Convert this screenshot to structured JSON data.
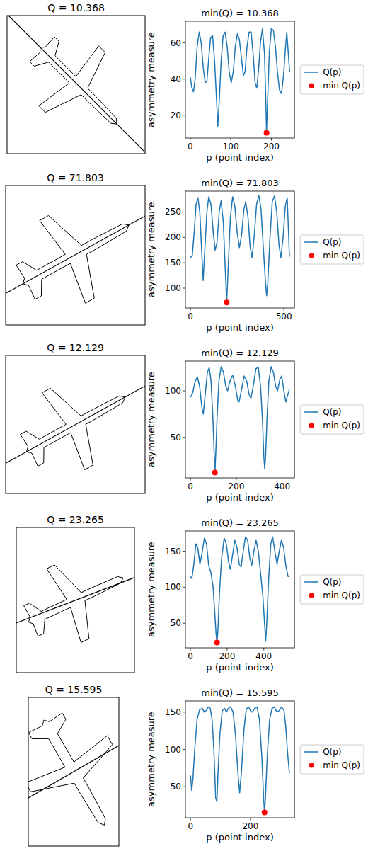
{
  "images": [
    {
      "title": "Q = 10.368"
    },
    {
      "title": "Q = 71.803"
    },
    {
      "title": "Q = 12.129"
    },
    {
      "title": "Q = 23.265"
    },
    {
      "title": "Q = 15.595"
    }
  ],
  "chart_data": [
    {
      "type": "line",
      "title": "min(Q) = 10.368",
      "x_label": "p (point index)",
      "y_label": "asymmetry measure",
      "xlim": [
        -12,
        257
      ],
      "ylim": [
        7.4,
        72
      ],
      "xticks": [
        0,
        100,
        200
      ],
      "yticks": [
        20,
        40,
        60
      ],
      "grid": false,
      "legend": "right",
      "series": [
        {
          "name": "Q(p)",
          "color": "#1f77b4",
          "line_style": "solid",
          "x": [
            0,
            4,
            8,
            12,
            17,
            22,
            27,
            32,
            37,
            41,
            45,
            50,
            55,
            60,
            64,
            68,
            72,
            76,
            81,
            86,
            91,
            96,
            101,
            106,
            111,
            116,
            121,
            126,
            131,
            135,
            140,
            145,
            150,
            155,
            160,
            164,
            168,
            173,
            178,
            183,
            186,
            188,
            191,
            195,
            200,
            205,
            210,
            215,
            220,
            225,
            230,
            235,
            238,
            245
          ],
          "values": [
            41,
            35,
            33,
            40,
            58,
            66,
            60,
            46,
            38,
            39,
            50,
            63,
            64,
            50,
            32,
            14,
            30,
            50,
            64,
            66,
            58,
            44,
            38,
            44,
            58,
            65,
            62,
            52,
            42,
            44,
            58,
            66,
            66,
            54,
            38,
            35,
            44,
            60,
            68,
            54,
            30,
            10.368,
            30,
            55,
            68,
            67,
            58,
            44,
            34,
            32,
            42,
            58,
            66,
            44
          ]
        },
        {
          "name": "min Q(p)",
          "type": "scatter",
          "color": "red",
          "marker": "circle",
          "x": [
            188
          ],
          "values": [
            10.368
          ]
        }
      ]
    },
    {
      "type": "line",
      "title": "min(Q) = 71.803",
      "x_label": "p (point index)",
      "y_label": "asymmetry measure",
      "xlim": [
        -27,
        557
      ],
      "ylim": [
        61,
        291
      ],
      "xticks": [
        0,
        500
      ],
      "yticks": [
        100,
        150,
        200,
        250
      ],
      "grid": false,
      "legend": "right",
      "series": [
        {
          "name": "Q(p)",
          "color": "#1f77b4",
          "line_style": "solid",
          "x": [
            0,
            10,
            20,
            30,
            40,
            50,
            60,
            68,
            76,
            88,
            98,
            110,
            122,
            132,
            142,
            154,
            164,
            176,
            186,
            194,
            202,
            214,
            226,
            238,
            250,
            262,
            274,
            286,
            296,
            308,
            320,
            330,
            342,
            354,
            366,
            378,
            390,
            402,
            408,
            414,
            426,
            438,
            450,
            462,
            474,
            484,
            496,
            508,
            518,
            530
          ],
          "values": [
            160,
            165,
            210,
            265,
            278,
            250,
            175,
            115,
            170,
            250,
            280,
            265,
            210,
            175,
            190,
            250,
            272,
            230,
            140,
            71.803,
            140,
            240,
            280,
            260,
            210,
            180,
            205,
            255,
            270,
            240,
            180,
            160,
            205,
            265,
            283,
            255,
            180,
            110,
            85,
            110,
            200,
            270,
            282,
            250,
            185,
            160,
            200,
            262,
            278,
            162
          ]
        },
        {
          "name": "min Q(p)",
          "type": "scatter",
          "color": "red",
          "marker": "circle",
          "x": [
            194
          ],
          "values": [
            71.803
          ]
        }
      ]
    },
    {
      "type": "line",
      "title": "min(Q) = 12.129",
      "x_label": "p (point index)",
      "y_label": "asymmetry measure",
      "xlim": [
        -22,
        454
      ],
      "ylim": [
        6.4,
        132
      ],
      "xticks": [
        0,
        200,
        400
      ],
      "yticks": [
        50,
        100
      ],
      "grid": false,
      "legend": "right",
      "series": [
        {
          "name": "Q(p)",
          "color": "#1f77b4",
          "line_style": "solid",
          "x": [
            0,
            10,
            20,
            30,
            40,
            50,
            56,
            64,
            74,
            82,
            90,
            98,
            104,
            107,
            110,
            116,
            124,
            134,
            144,
            154,
            162,
            172,
            184,
            196,
            206,
            212,
            222,
            234,
            246,
            256,
            264,
            274,
            286,
            296,
            306,
            314,
            320,
            324,
            328,
            334,
            342,
            352,
            362,
            372,
            380,
            390,
            398,
            408,
            416,
            424,
            432
          ],
          "values": [
            93,
            98,
            110,
            115,
            105,
            82,
            75,
            95,
            120,
            125,
            110,
            70,
            30,
            12.129,
            30,
            70,
            110,
            126,
            120,
            105,
            100,
            110,
            117,
            105,
            90,
            88,
            100,
            116,
            110,
            96,
            92,
            105,
            124,
            125,
            105,
            70,
            30,
            16,
            30,
            70,
            110,
            126,
            120,
            105,
            100,
            112,
            116,
            100,
            88,
            95,
            102
          ]
        },
        {
          "name": "min Q(p)",
          "type": "scatter",
          "color": "red",
          "marker": "circle",
          "x": [
            107
          ],
          "values": [
            12.129
          ]
        }
      ]
    },
    {
      "type": "line",
      "title": "min(Q) = 23.265",
      "x_label": "p (point index)",
      "y_label": "asymmetry measure",
      "xlim": [
        -27,
        567
      ],
      "ylim": [
        15.9,
        178
      ],
      "xticks": [
        0,
        200,
        400
      ],
      "yticks": [
        50,
        100,
        150
      ],
      "grid": false,
      "legend": "right",
      "series": [
        {
          "name": "Q(p)",
          "color": "#1f77b4",
          "line_style": "solid",
          "x": [
            0,
            8,
            18,
            30,
            40,
            52,
            62,
            76,
            88,
            100,
            112,
            124,
            134,
            140,
            145,
            150,
            158,
            170,
            184,
            196,
            208,
            218,
            230,
            242,
            254,
            266,
            276,
            288,
            300,
            312,
            324,
            334,
            346,
            358,
            370,
            382,
            394,
            404,
            410,
            416,
            426,
            438,
            448,
            460,
            472,
            484,
            496,
            508,
            520,
            532,
            540
          ],
          "values": [
            115,
            112,
            130,
            160,
            155,
            132,
            145,
            168,
            160,
            130,
            120,
            100,
            60,
            35,
            23.265,
            40,
            90,
            140,
            168,
            160,
            135,
            125,
            145,
            165,
            155,
            132,
            128,
            150,
            170,
            165,
            140,
            130,
            150,
            165,
            150,
            120,
            90,
            50,
            25,
            50,
            110,
            160,
            170,
            150,
            132,
            150,
            165,
            155,
            130,
            115,
            115
          ]
        },
        {
          "name": "min Q(p)",
          "type": "scatter",
          "color": "red",
          "marker": "circle",
          "x": [
            145
          ],
          "values": [
            23.265
          ]
        }
      ]
    },
    {
      "type": "line",
      "title": "min(Q) = 15.595",
      "x_label": "p (point index)",
      "y_label": "asymmetry measure",
      "xlim": [
        -17,
        347
      ],
      "ylim": [
        8.5,
        165
      ],
      "xticks": [
        0,
        200
      ],
      "yticks": [
        50,
        100,
        150
      ],
      "grid": false,
      "legend": "right",
      "series": [
        {
          "name": "Q(p)",
          "color": "#1f77b4",
          "line_style": "solid",
          "x": [
            0,
            4,
            8,
            14,
            22,
            30,
            40,
            46,
            52,
            60,
            66,
            72,
            78,
            84,
            88,
            92,
            98,
            106,
            114,
            120,
            126,
            134,
            142,
            150,
            158,
            164,
            170,
            178,
            186,
            194,
            200,
            206,
            214,
            222,
            230,
            238,
            244,
            247,
            250,
            256,
            264,
            272,
            280,
            288,
            296,
            304,
            312,
            318,
            324,
            330
          ],
          "values": [
            65,
            45,
            60,
            100,
            140,
            153,
            155,
            150,
            152,
            157,
            155,
            140,
            100,
            35,
            30,
            70,
            120,
            152,
            155,
            150,
            155,
            157,
            150,
            120,
            70,
            42,
            70,
            125,
            154,
            157,
            152,
            150,
            155,
            157,
            140,
            90,
            35,
            15.595,
            35,
            90,
            140,
            155,
            157,
            150,
            152,
            157,
            152,
            130,
            95,
            68
          ]
        },
        {
          "name": "min Q(p)",
          "type": "scatter",
          "color": "red",
          "marker": "circle",
          "x": [
            247
          ],
          "values": [
            15.595
          ]
        }
      ]
    }
  ]
}
